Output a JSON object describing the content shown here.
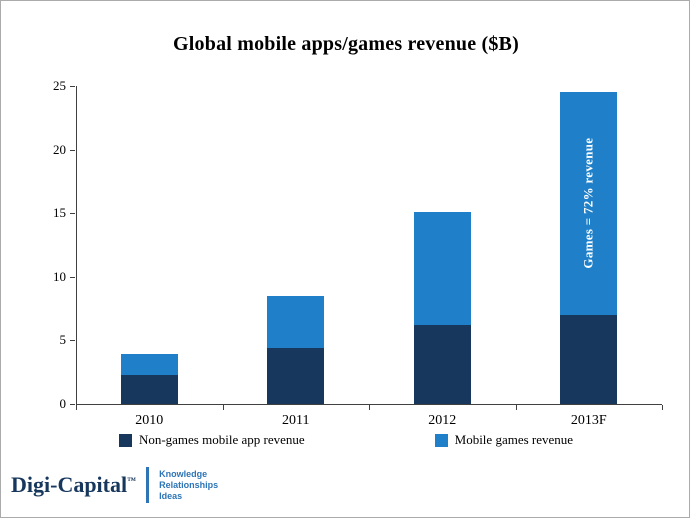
{
  "chart_data": {
    "type": "bar",
    "stacked": true,
    "title": "Global mobile apps/games revenue ($B)",
    "categories": [
      "2010",
      "2011",
      "2012",
      "2013F"
    ],
    "series": [
      {
        "name": "Non-games mobile app revenue",
        "color": "#17375D",
        "values": [
          2.3,
          4.4,
          6.2,
          7.0
        ]
      },
      {
        "name": "Mobile games revenue",
        "color": "#1F80C9",
        "values": [
          1.6,
          4.1,
          8.9,
          17.5
        ]
      }
    ],
    "ylim": [
      0,
      25
    ],
    "yticks": [
      0,
      5,
      10,
      15,
      20,
      25
    ],
    "grid": false,
    "legend_position": "bottom",
    "annotation": {
      "text": "Games = 72% revenue",
      "target_category": "2013F",
      "target_series": "Mobile games revenue",
      "color": "#FFFFFF"
    }
  },
  "branding": {
    "logo_text": "Digi-Capital",
    "trademark": "™",
    "tagline_lines": [
      "Knowledge",
      "Relationships",
      "Ideas"
    ]
  }
}
